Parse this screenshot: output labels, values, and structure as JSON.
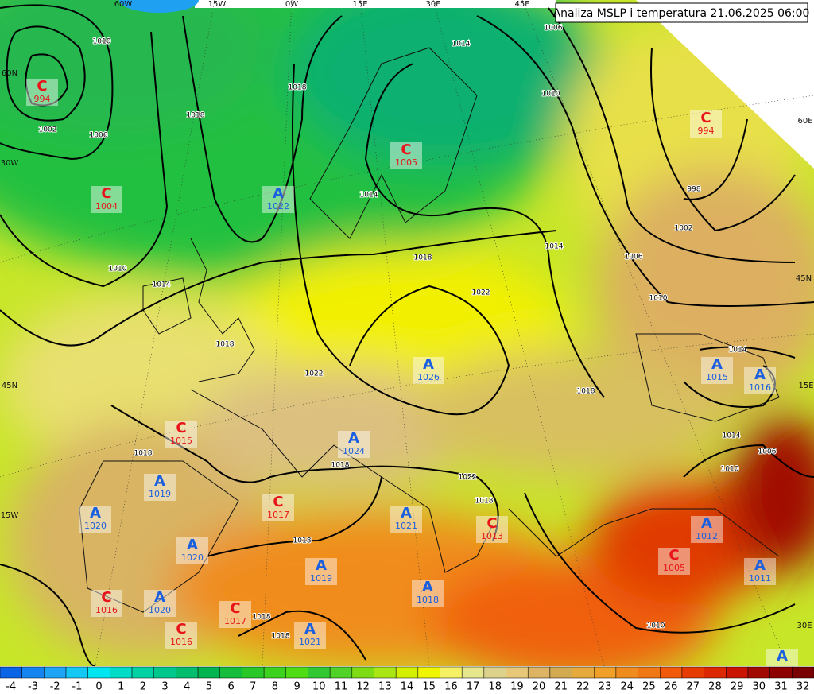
{
  "title": "Analiza MSLP i temperatura 21.06.2025 06:00",
  "center_colors": {
    "C": "#e8141a",
    "A": "#1a5fe0"
  },
  "grid_labels": [
    "60W",
    "15W",
    "0W",
    "15E",
    "30E",
    "45E",
    "60N",
    "30W",
    "45N",
    "15W",
    "60E",
    "45N",
    "15E",
    "30E"
  ],
  "centers": [
    {
      "letter": "C",
      "value": 994
    },
    {
      "letter": "C",
      "value": 994
    },
    {
      "letter": "C",
      "value": 1005
    },
    {
      "letter": "C",
      "value": 1004
    },
    {
      "letter": "A",
      "value": 1022
    },
    {
      "letter": "A",
      "value": 1026
    },
    {
      "letter": "A",
      "value": 1015
    },
    {
      "letter": "A",
      "value": 1016
    },
    {
      "letter": "C",
      "value": 1015
    },
    {
      "letter": "A",
      "value": 1024
    },
    {
      "letter": "A",
      "value": 1019
    },
    {
      "letter": "A",
      "value": 1020
    },
    {
      "letter": "C",
      "value": 1017
    },
    {
      "letter": "A",
      "value": 1021
    },
    {
      "letter": "C",
      "value": 1013
    },
    {
      "letter": "A",
      "value": 1012
    },
    {
      "letter": "A",
      "value": 1020
    },
    {
      "letter": "C",
      "value": 1005
    },
    {
      "letter": "A",
      "value": 1019
    },
    {
      "letter": "A",
      "value": 1011
    },
    {
      "letter": "C",
      "value": 1016
    },
    {
      "letter": "A",
      "value": 1020
    },
    {
      "letter": "C",
      "value": 1017
    },
    {
      "letter": "A",
      "value": 1018
    },
    {
      "letter": "C",
      "value": 1016
    },
    {
      "letter": "A",
      "value": 1021
    },
    {
      "letter": "A"
    }
  ],
  "isobar_labels": [
    1010,
    1002,
    1006,
    1018,
    1018,
    1014,
    1006,
    1010,
    998,
    1002,
    1006,
    1010,
    1014,
    1022,
    1018,
    1014,
    1010,
    1014,
    1018,
    1022,
    1018,
    1018,
    1018,
    1018,
    1018,
    1022,
    1018,
    1018,
    1014,
    1014,
    1006,
    1010,
    1010
  ],
  "colorbar": {
    "labels": [
      -4,
      -3,
      -2,
      -1,
      0,
      1,
      2,
      3,
      4,
      5,
      6,
      7,
      8,
      9,
      10,
      11,
      12,
      13,
      14,
      15,
      16,
      17,
      18,
      19,
      20,
      21,
      22,
      23,
      24,
      25,
      26,
      27,
      28,
      29,
      30,
      31,
      32
    ]
  }
}
